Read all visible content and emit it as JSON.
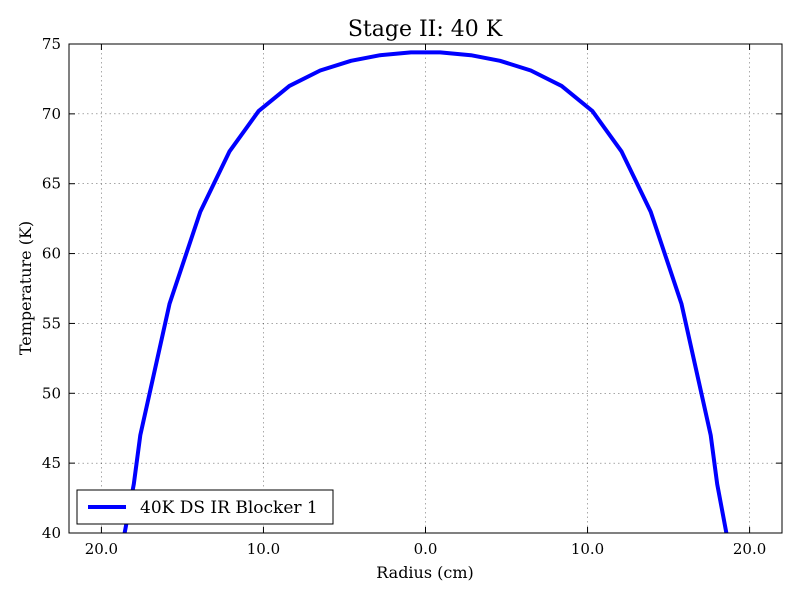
{
  "chart_data": {
    "type": "line",
    "title": "Stage II: 40 K",
    "xlabel": "Radius (cm)",
    "ylabel": "Temperature (K)",
    "xlim": [
      -22,
      22
    ],
    "ylim": [
      40,
      75
    ],
    "xticks": [
      -20,
      -10,
      0,
      10,
      20
    ],
    "xtick_labels": [
      "20.0",
      "10.0",
      "0.0",
      "10.0",
      "20.0"
    ],
    "yticks": [
      40,
      45,
      50,
      55,
      60,
      65,
      70,
      75
    ],
    "ytick_labels": [
      "40",
      "45",
      "50",
      "55",
      "60",
      "65",
      "70",
      "75"
    ],
    "grid": true,
    "legend_position": "lower-left",
    "series": [
      {
        "name": "40K DS IR Blocker 1",
        "color": "#0000ff",
        "x": [
          -18.6,
          -18.0,
          -17.6,
          -15.8,
          -13.9,
          -12.1,
          -10.3,
          -8.4,
          -6.5,
          -4.6,
          -2.8,
          -0.9,
          0.9,
          2.8,
          4.6,
          6.5,
          8.4,
          10.3,
          12.1,
          13.9,
          15.8,
          17.6,
          18.0,
          18.6
        ],
        "y": [
          39.8,
          43.5,
          47.0,
          56.4,
          63.0,
          67.3,
          70.2,
          72.0,
          73.1,
          73.8,
          74.2,
          74.4,
          74.4,
          74.2,
          73.8,
          73.1,
          72.0,
          70.2,
          67.3,
          63.0,
          56.4,
          47.0,
          43.5,
          39.8
        ]
      }
    ]
  }
}
